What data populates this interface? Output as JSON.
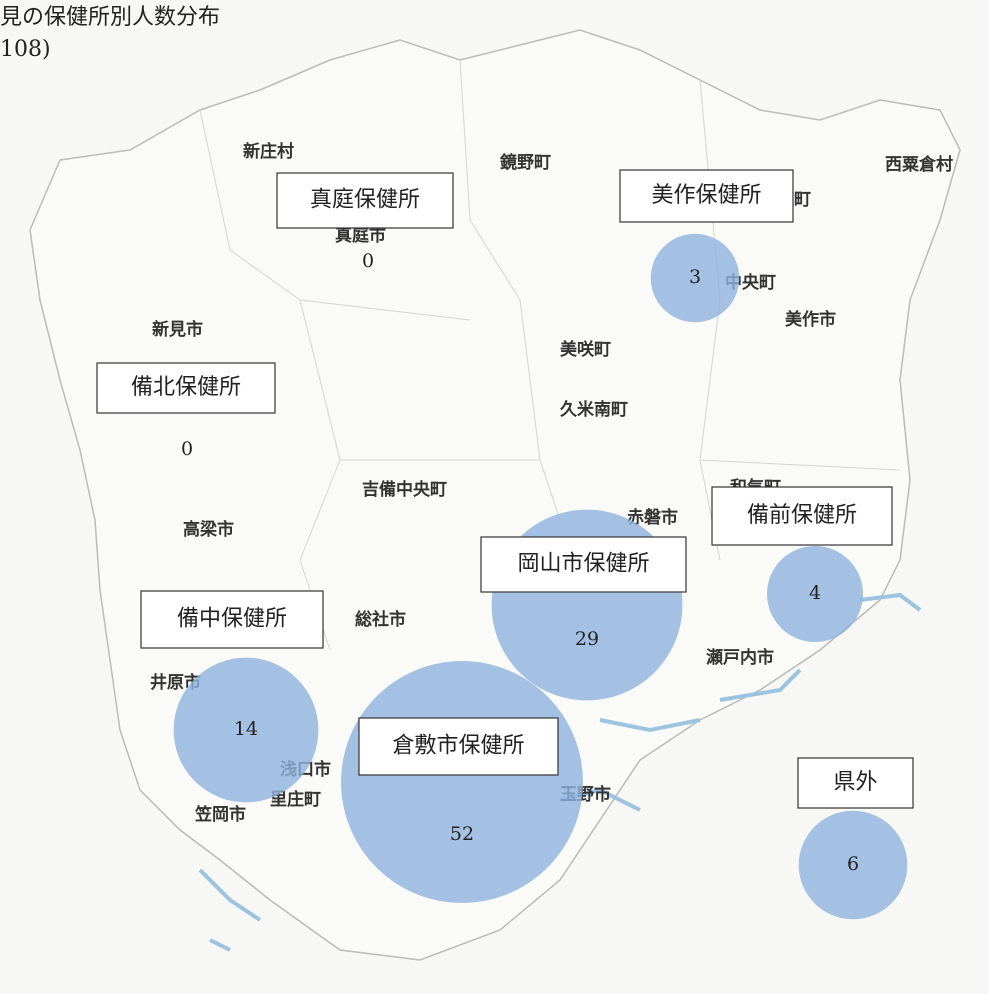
{
  "header": {
    "title": "見の保健所別人数分布",
    "subtitle": "108)"
  },
  "towns": [
    "新庄村",
    "鏡野町",
    "西粟倉村",
    "真庭市",
    "奈義町",
    "中央町",
    "美作市",
    "新見市",
    "美咲町",
    "久米南町",
    "吉備中央町",
    "和気町",
    "赤磐市",
    "高梁市",
    "総社市",
    "瀬戸内市",
    "井原市",
    "浅口市",
    "里庄町",
    "笠岡市",
    "玉野市"
  ],
  "offices": [
    {
      "label": "真庭保健所",
      "value": 0
    },
    {
      "label": "美作保健所",
      "value": 3
    },
    {
      "label": "備北保健所",
      "value": 0
    },
    {
      "label": "岡山市保健所",
      "value": 29
    },
    {
      "label": "備前保健所",
      "value": 4
    },
    {
      "label": "備中保健所",
      "value": 14
    },
    {
      "label": "倉敷市保健所",
      "value": 52
    },
    {
      "label": "県外",
      "value": 6
    }
  ],
  "bubble_color": "#8fb3de"
}
